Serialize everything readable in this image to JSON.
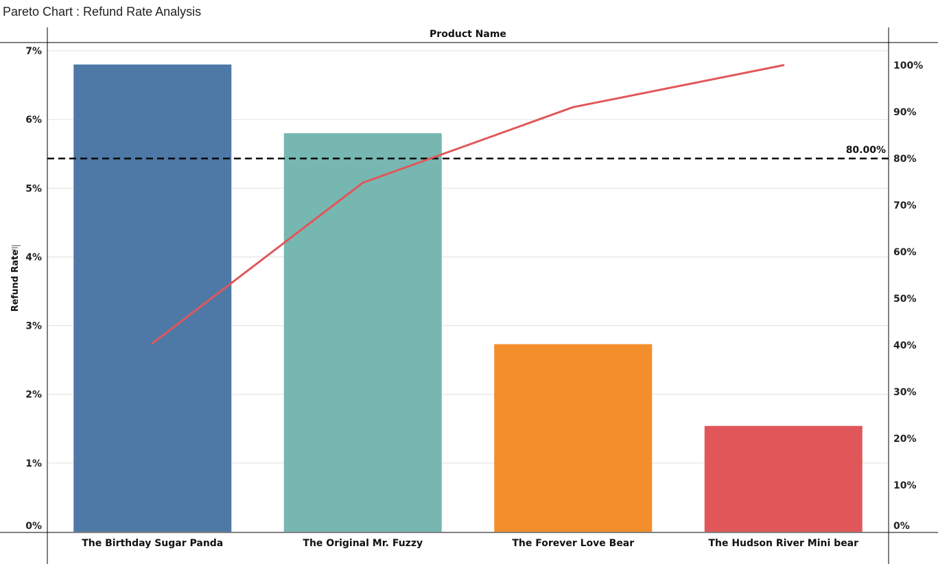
{
  "title": "Pareto Chart : Refund Rate Analysis",
  "chart_data": {
    "type": "bar",
    "title": "Pareto Chart : Refund Rate Analysis",
    "header": "Product Name",
    "ylabel": "Refund Rate",
    "categories": [
      "The Birthday Sugar Panda",
      "The Original Mr. Fuzzy",
      "The Forever Love Bear",
      "The Hudson River Mini bear"
    ],
    "values": [
      6.8,
      5.8,
      2.73,
      1.54
    ],
    "colors": [
      "#4e79a7",
      "#76b7b2",
      "#f28e2b",
      "#e15759"
    ],
    "ylim": [
      0,
      7
    ],
    "y_ticks": [
      "0%",
      "1%",
      "2%",
      "3%",
      "4%",
      "5%",
      "6%",
      "7%"
    ],
    "y2lim": [
      0,
      100
    ],
    "y2_ticks": [
      "0%",
      "10%",
      "20%",
      "30%",
      "40%",
      "50%",
      "60%",
      "70%",
      "80%",
      "90%",
      "100%"
    ],
    "line_series": {
      "values": [
        40.4,
        74.8,
        91.0,
        100.0
      ],
      "color": "#e15759"
    },
    "reference_line": {
      "value": 80,
      "label": "80.00%",
      "style": "dashed",
      "color": "#000000"
    },
    "grid": true
  }
}
